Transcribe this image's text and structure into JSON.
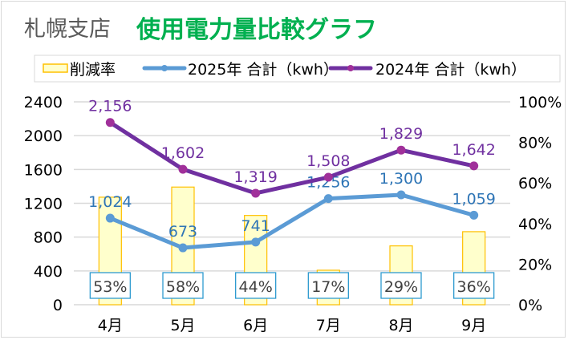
{
  "header": {
    "branch": "札幌支店",
    "title": "使用電力量比較グラフ"
  },
  "chart_data": {
    "type": "bar+line",
    "categories": [
      "4月",
      "5月",
      "6月",
      "7月",
      "8月",
      "9月"
    ],
    "bars": {
      "name": "削減率",
      "values": [
        53,
        58,
        44,
        17,
        29,
        36
      ],
      "labels": [
        "53%",
        "58%",
        "44%",
        "17%",
        "29%",
        "36%"
      ],
      "axis": "right",
      "fill": "#FFFFCC",
      "stroke": "#FFC000"
    },
    "series": [
      {
        "name": "2025年 合計（kwh）",
        "values": [
          1024,
          673,
          741,
          1256,
          1300,
          1059
        ],
        "labels": [
          "1,024",
          "673",
          "741",
          "1,256",
          "1,300",
          "1,059"
        ],
        "color": "#5B9BD5",
        "label_color": "#2E75B6",
        "axis": "left"
      },
      {
        "name": "2024年 合計（kwh）",
        "values": [
          2156,
          1602,
          1319,
          1508,
          1829,
          1642
        ],
        "labels": [
          "2,156",
          "1,602",
          "1,319",
          "1,508",
          "1,829",
          "1,642"
        ],
        "color": "#7030A0",
        "marker_color": "#A0309A",
        "label_color": "#7030A0",
        "axis": "left"
      }
    ],
    "y_left": {
      "range": [
        0,
        2400
      ],
      "ticks": [
        "0",
        "400",
        "800",
        "1200",
        "1600",
        "2000",
        "2400"
      ]
    },
    "y_right": {
      "range": [
        0,
        100
      ],
      "ticks": [
        "0%",
        "20%",
        "40%",
        "60%",
        "80%",
        "100%"
      ]
    },
    "grid": true,
    "legend": "top"
  }
}
